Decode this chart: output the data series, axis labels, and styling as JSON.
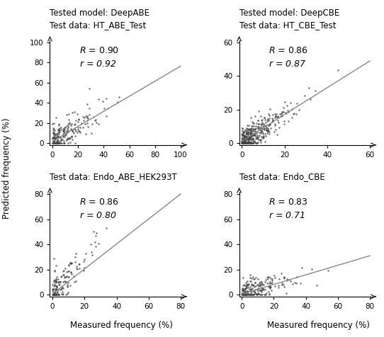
{
  "panels": [
    {
      "model": "Tested model: DeepABE",
      "test_data": "Test data: HT_ABE_Test",
      "R": 0.9,
      "r": 0.92,
      "xlim": [
        0,
        100
      ],
      "ylim": [
        0,
        100
      ],
      "xticks": [
        0,
        20,
        40,
        60,
        80,
        100
      ],
      "yticks": [
        0,
        20,
        40,
        60,
        80,
        100
      ],
      "seed": 42,
      "n_points": 220,
      "slope": 0.75,
      "intercept": 1.5,
      "scatter_xmax": 80,
      "noise_scale": 8,
      "x_exp_scale": 12
    },
    {
      "model": "Tested model: DeepCBE",
      "test_data": "Test data: HT_CBE_Test",
      "R": 0.86,
      "r": 0.87,
      "xlim": [
        0,
        60
      ],
      "ylim": [
        0,
        60
      ],
      "xticks": [
        0,
        20,
        40,
        60
      ],
      "yticks": [
        0,
        20,
        40,
        60
      ],
      "seed": 7,
      "n_points": 400,
      "slope": 0.8,
      "intercept": 1.0,
      "scatter_xmax": 45,
      "noise_scale": 4,
      "x_exp_scale": 7
    },
    {
      "model": "",
      "test_data": "Test data: Endo_ABE_HEK293T",
      "R": 0.86,
      "r": 0.8,
      "xlim": [
        0,
        80
      ],
      "ylim": [
        0,
        80
      ],
      "xticks": [
        0,
        20,
        40,
        60,
        80
      ],
      "yticks": [
        0,
        20,
        40,
        60,
        80
      ],
      "seed": 13,
      "n_points": 160,
      "slope": 1.55,
      "intercept": 0.5,
      "scatter_xmax": 45,
      "noise_scale": 8,
      "x_exp_scale": 8
    },
    {
      "model": "",
      "test_data": "Test data: Endo_CBE",
      "R": 0.83,
      "r": 0.71,
      "xlim": [
        0,
        80
      ],
      "ylim": [
        0,
        80
      ],
      "xticks": [
        0,
        20,
        40,
        60,
        80
      ],
      "yticks": [
        0,
        20,
        40,
        60,
        80
      ],
      "seed": 99,
      "n_points": 220,
      "slope": 0.38,
      "intercept": 0.5,
      "scatter_xmax": 70,
      "noise_scale": 5,
      "x_exp_scale": 10
    }
  ],
  "ylabel": "Predicted frequency (%)",
  "xlabel": "Measured frequency (%)",
  "dot_color": "#444444",
  "line_color": "#888888",
  "dot_size": 3,
  "title_fontsize": 8.5,
  "label_fontsize": 8.5,
  "tick_fontsize": 7.5,
  "annot_fontsize": 9
}
